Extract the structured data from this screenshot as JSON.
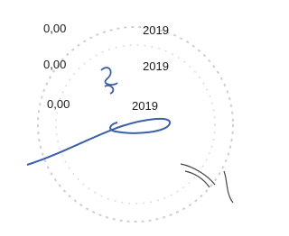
{
  "rows": [
    {
      "amount": "0,00",
      "year": "2019"
    },
    {
      "amount": "0,00",
      "year": "2019"
    },
    {
      "amount": "0,00",
      "year": "2019"
    }
  ]
}
